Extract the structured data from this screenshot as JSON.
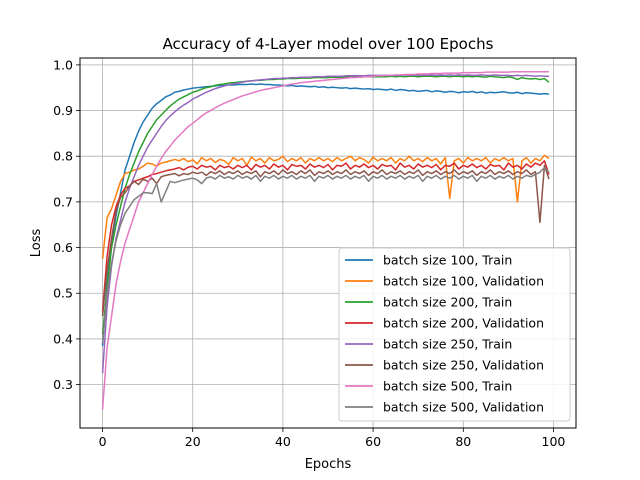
{
  "chart_data": {
    "type": "line",
    "title": "Accuracy of 4-Layer model over 100 Epochs",
    "xlabel": "Epochs",
    "ylabel": "Loss",
    "xlim": [
      -5,
      105
    ],
    "ylim": [
      0.205,
      1.015
    ],
    "xticks": [
      0,
      20,
      40,
      60,
      80,
      100
    ],
    "yticks": [
      0.3,
      0.4,
      0.5,
      0.6,
      0.7,
      0.8,
      0.9,
      1.0
    ],
    "ytick_labels": [
      "0.3",
      "0.4",
      "0.5",
      "0.6",
      "0.7",
      "0.8",
      "0.9",
      "1.0"
    ],
    "grid": true,
    "legend_position": "lower-right",
    "x": [
      0,
      1,
      2,
      3,
      4,
      5,
      6,
      7,
      8,
      9,
      10,
      11,
      12,
      13,
      14,
      15,
      16,
      17,
      18,
      19,
      20,
      21,
      22,
      23,
      24,
      25,
      26,
      27,
      28,
      29,
      30,
      31,
      32,
      33,
      34,
      35,
      36,
      37,
      38,
      39,
      40,
      41,
      42,
      43,
      44,
      45,
      46,
      47,
      48,
      49,
      50,
      51,
      52,
      53,
      54,
      55,
      56,
      57,
      58,
      59,
      60,
      61,
      62,
      63,
      64,
      65,
      66,
      67,
      68,
      69,
      70,
      71,
      72,
      73,
      74,
      75,
      76,
      77,
      78,
      79,
      80,
      81,
      82,
      83,
      84,
      85,
      86,
      87,
      88,
      89,
      90,
      91,
      92,
      93,
      94,
      95,
      96,
      97,
      98,
      99
    ],
    "series": [
      {
        "name": "batch size 100, Train",
        "color": "#1f77b4",
        "values": [
          0.385,
          0.52,
          0.61,
          0.67,
          0.72,
          0.77,
          0.8,
          0.83,
          0.855,
          0.875,
          0.89,
          0.905,
          0.915,
          0.922,
          0.93,
          0.934,
          0.94,
          0.942,
          0.945,
          0.947,
          0.949,
          0.95,
          0.951,
          0.952,
          0.953,
          0.954,
          0.955,
          0.955,
          0.956,
          0.956,
          0.957,
          0.957,
          0.957,
          0.958,
          0.957,
          0.958,
          0.957,
          0.957,
          0.956,
          0.956,
          0.955,
          0.954,
          0.955,
          0.953,
          0.954,
          0.953,
          0.952,
          0.953,
          0.951,
          0.952,
          0.95,
          0.951,
          0.95,
          0.949,
          0.95,
          0.948,
          0.949,
          0.948,
          0.947,
          0.948,
          0.946,
          0.947,
          0.946,
          0.945,
          0.947,
          0.944,
          0.946,
          0.945,
          0.943,
          0.944,
          0.942,
          0.943,
          0.944,
          0.941,
          0.943,
          0.942,
          0.94,
          0.942,
          0.941,
          0.939,
          0.941,
          0.94,
          0.942,
          0.939,
          0.941,
          0.938,
          0.94,
          0.939,
          0.94,
          0.941,
          0.939,
          0.938,
          0.94,
          0.937,
          0.939,
          0.938,
          0.937,
          0.936,
          0.937,
          0.936
        ]
      },
      {
        "name": "batch size 100, Validation",
        "color": "#ff7f0e",
        "values": [
          0.575,
          0.665,
          0.685,
          0.715,
          0.745,
          0.762,
          0.765,
          0.77,
          0.772,
          0.778,
          0.785,
          0.783,
          0.778,
          0.785,
          0.787,
          0.79,
          0.793,
          0.79,
          0.795,
          0.788,
          0.792,
          0.783,
          0.797,
          0.79,
          0.795,
          0.786,
          0.793,
          0.79,
          0.782,
          0.797,
          0.79,
          0.795,
          0.78,
          0.798,
          0.79,
          0.795,
          0.785,
          0.797,
          0.79,
          0.793,
          0.8,
          0.788,
          0.795,
          0.79,
          0.797,
          0.785,
          0.795,
          0.79,
          0.797,
          0.79,
          0.795,
          0.788,
          0.797,
          0.79,
          0.795,
          0.8,
          0.79,
          0.797,
          0.793,
          0.785,
          0.798,
          0.79,
          0.795,
          0.79,
          0.797,
          0.785,
          0.795,
          0.79,
          0.8,
          0.79,
          0.795,
          0.788,
          0.797,
          0.79,
          0.795,
          0.783,
          0.797,
          0.708,
          0.79,
          0.795,
          0.785,
          0.797,
          0.79,
          0.795,
          0.79,
          0.797,
          0.785,
          0.795,
          0.79,
          0.797,
          0.79,
          0.795,
          0.7,
          0.79,
          0.797,
          0.785,
          0.795,
          0.79,
          0.802,
          0.795
        ]
      },
      {
        "name": "batch size 200, Train",
        "color": "#2ca02c",
        "values": [
          0.41,
          0.51,
          0.6,
          0.65,
          0.69,
          0.73,
          0.76,
          0.785,
          0.81,
          0.83,
          0.85,
          0.865,
          0.88,
          0.89,
          0.9,
          0.91,
          0.918,
          0.925,
          0.93,
          0.935,
          0.94,
          0.943,
          0.947,
          0.95,
          0.952,
          0.955,
          0.957,
          0.958,
          0.96,
          0.961,
          0.962,
          0.963,
          0.964,
          0.965,
          0.966,
          0.966,
          0.967,
          0.968,
          0.968,
          0.969,
          0.969,
          0.97,
          0.97,
          0.97,
          0.971,
          0.971,
          0.971,
          0.972,
          0.972,
          0.972,
          0.972,
          0.973,
          0.973,
          0.973,
          0.973,
          0.973,
          0.974,
          0.973,
          0.974,
          0.974,
          0.974,
          0.974,
          0.974,
          0.974,
          0.975,
          0.974,
          0.975,
          0.974,
          0.975,
          0.975,
          0.974,
          0.975,
          0.975,
          0.975,
          0.974,
          0.975,
          0.975,
          0.974,
          0.975,
          0.975,
          0.974,
          0.975,
          0.974,
          0.975,
          0.974,
          0.973,
          0.975,
          0.974,
          0.973,
          0.972,
          0.974,
          0.972,
          0.968,
          0.972,
          0.97,
          0.969,
          0.97,
          0.968,
          0.97,
          0.962
        ]
      },
      {
        "name": "batch size 200, Validation",
        "color": "#d62728",
        "values": [
          0.46,
          0.58,
          0.65,
          0.69,
          0.715,
          0.73,
          0.735,
          0.745,
          0.748,
          0.752,
          0.755,
          0.76,
          0.762,
          0.765,
          0.768,
          0.77,
          0.772,
          0.775,
          0.77,
          0.776,
          0.778,
          0.772,
          0.78,
          0.776,
          0.778,
          0.77,
          0.78,
          0.775,
          0.778,
          0.772,
          0.78,
          0.775,
          0.78,
          0.77,
          0.782,
          0.776,
          0.78,
          0.772,
          0.783,
          0.776,
          0.78,
          0.77,
          0.782,
          0.778,
          0.78,
          0.772,
          0.783,
          0.776,
          0.78,
          0.775,
          0.782,
          0.77,
          0.78,
          0.778,
          0.785,
          0.772,
          0.78,
          0.776,
          0.783,
          0.775,
          0.78,
          0.772,
          0.782,
          0.778,
          0.78,
          0.77,
          0.785,
          0.776,
          0.78,
          0.772,
          0.783,
          0.776,
          0.78,
          0.775,
          0.782,
          0.77,
          0.78,
          0.778,
          0.785,
          0.772,
          0.78,
          0.776,
          0.783,
          0.775,
          0.78,
          0.772,
          0.782,
          0.778,
          0.78,
          0.77,
          0.785,
          0.776,
          0.78,
          0.772,
          0.783,
          0.776,
          0.785,
          0.78,
          0.79,
          0.76
        ]
      },
      {
        "name": "batch size 250, Train",
        "color": "#9467bd",
        "values": [
          0.325,
          0.47,
          0.56,
          0.62,
          0.66,
          0.7,
          0.73,
          0.755,
          0.78,
          0.8,
          0.82,
          0.835,
          0.85,
          0.865,
          0.878,
          0.888,
          0.897,
          0.905,
          0.912,
          0.918,
          0.925,
          0.93,
          0.935,
          0.94,
          0.944,
          0.948,
          0.951,
          0.954,
          0.956,
          0.958,
          0.96,
          0.962,
          0.964,
          0.965,
          0.966,
          0.967,
          0.968,
          0.969,
          0.97,
          0.97,
          0.971,
          0.971,
          0.972,
          0.972,
          0.973,
          0.973,
          0.973,
          0.974,
          0.974,
          0.974,
          0.975,
          0.975,
          0.975,
          0.975,
          0.976,
          0.976,
          0.976,
          0.976,
          0.976,
          0.977,
          0.977,
          0.977,
          0.977,
          0.977,
          0.977,
          0.977,
          0.977,
          0.978,
          0.977,
          0.978,
          0.977,
          0.978,
          0.977,
          0.978,
          0.977,
          0.978,
          0.977,
          0.978,
          0.977,
          0.978,
          0.977,
          0.978,
          0.977,
          0.977,
          0.978,
          0.977,
          0.977,
          0.978,
          0.977,
          0.977,
          0.977,
          0.976,
          0.977,
          0.976,
          0.977,
          0.976,
          0.975,
          0.976,
          0.975,
          0.975
        ]
      },
      {
        "name": "batch size 250, Validation",
        "color": "#8c564b",
        "values": [
          0.45,
          0.55,
          0.62,
          0.68,
          0.71,
          0.72,
          0.735,
          0.745,
          0.738,
          0.75,
          0.745,
          0.752,
          0.74,
          0.755,
          0.758,
          0.76,
          0.762,
          0.757,
          0.762,
          0.76,
          0.765,
          0.762,
          0.765,
          0.758,
          0.766,
          0.762,
          0.768,
          0.76,
          0.766,
          0.762,
          0.768,
          0.76,
          0.766,
          0.762,
          0.768,
          0.755,
          0.766,
          0.762,
          0.768,
          0.76,
          0.77,
          0.762,
          0.766,
          0.76,
          0.768,
          0.762,
          0.77,
          0.758,
          0.766,
          0.762,
          0.768,
          0.76,
          0.766,
          0.762,
          0.77,
          0.76,
          0.766,
          0.762,
          0.768,
          0.758,
          0.766,
          0.762,
          0.77,
          0.76,
          0.766,
          0.762,
          0.768,
          0.76,
          0.766,
          0.762,
          0.77,
          0.758,
          0.766,
          0.762,
          0.768,
          0.76,
          0.766,
          0.762,
          0.77,
          0.76,
          0.766,
          0.762,
          0.768,
          0.758,
          0.766,
          0.762,
          0.77,
          0.76,
          0.766,
          0.762,
          0.768,
          0.76,
          0.766,
          0.762,
          0.77,
          0.76,
          0.766,
          0.655,
          0.78,
          0.75
        ]
      },
      {
        "name": "batch size 500, Train",
        "color": "#e377c2",
        "values": [
          0.245,
          0.38,
          0.45,
          0.52,
          0.57,
          0.61,
          0.64,
          0.67,
          0.7,
          0.72,
          0.74,
          0.76,
          0.778,
          0.795,
          0.81,
          0.822,
          0.835,
          0.845,
          0.855,
          0.865,
          0.872,
          0.88,
          0.888,
          0.895,
          0.9,
          0.906,
          0.911,
          0.916,
          0.92,
          0.924,
          0.928,
          0.932,
          0.935,
          0.938,
          0.941,
          0.944,
          0.946,
          0.948,
          0.95,
          0.952,
          0.954,
          0.956,
          0.958,
          0.959,
          0.961,
          0.962,
          0.963,
          0.964,
          0.965,
          0.966,
          0.967,
          0.968,
          0.969,
          0.97,
          0.971,
          0.972,
          0.972,
          0.973,
          0.974,
          0.974,
          0.975,
          0.976,
          0.976,
          0.977,
          0.977,
          0.978,
          0.978,
          0.979,
          0.979,
          0.979,
          0.98,
          0.98,
          0.98,
          0.981,
          0.981,
          0.981,
          0.982,
          0.982,
          0.982,
          0.982,
          0.983,
          0.983,
          0.983,
          0.983,
          0.983,
          0.984,
          0.984,
          0.984,
          0.984,
          0.984,
          0.984,
          0.985,
          0.985,
          0.985,
          0.985,
          0.985,
          0.985,
          0.985,
          0.985,
          0.985
        ]
      },
      {
        "name": "batch size 500, Validation",
        "color": "#7f7f7f",
        "values": [
          0.39,
          0.5,
          0.565,
          0.615,
          0.65,
          0.675,
          0.69,
          0.705,
          0.712,
          0.72,
          0.72,
          0.718,
          0.74,
          0.7,
          0.722,
          0.745,
          0.742,
          0.745,
          0.748,
          0.75,
          0.752,
          0.748,
          0.74,
          0.752,
          0.755,
          0.75,
          0.758,
          0.752,
          0.755,
          0.75,
          0.758,
          0.752,
          0.756,
          0.75,
          0.758,
          0.745,
          0.756,
          0.752,
          0.758,
          0.75,
          0.756,
          0.752,
          0.758,
          0.75,
          0.756,
          0.752,
          0.758,
          0.745,
          0.756,
          0.752,
          0.758,
          0.75,
          0.756,
          0.752,
          0.758,
          0.75,
          0.756,
          0.752,
          0.758,
          0.745,
          0.756,
          0.752,
          0.758,
          0.75,
          0.756,
          0.752,
          0.758,
          0.75,
          0.756,
          0.752,
          0.758,
          0.745,
          0.756,
          0.752,
          0.758,
          0.75,
          0.756,
          0.752,
          0.758,
          0.75,
          0.756,
          0.752,
          0.758,
          0.745,
          0.756,
          0.752,
          0.758,
          0.75,
          0.756,
          0.752,
          0.758,
          0.75,
          0.756,
          0.752,
          0.758,
          0.755,
          0.76,
          0.765,
          0.775,
          0.765
        ]
      }
    ]
  }
}
